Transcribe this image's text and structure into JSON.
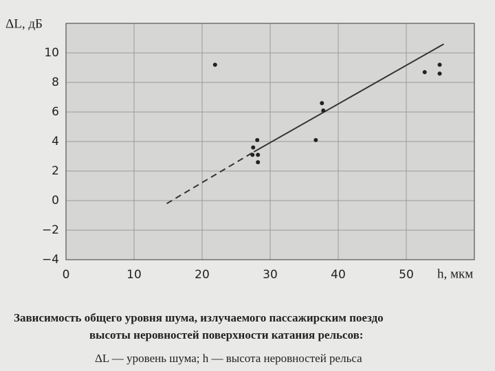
{
  "chart_data": {
    "type": "scatter",
    "y_label": "ΔL, дБ",
    "x_label": "h, мкм",
    "caption": [
      "Зависимость общего уровня шума, излучаемого пассажирским поездо",
      "высоты неровностей поверхности катания рельсов:",
      "ΔL — уровень шума; h — высота неровностей рельса"
    ],
    "xlim": [
      0,
      60
    ],
    "ylim": [
      -4,
      12
    ],
    "xticks": [
      0,
      10,
      20,
      30,
      40,
      50
    ],
    "yticks": [
      {
        "value": -4,
        "label": "−4"
      },
      {
        "value": -2,
        "label": "−2"
      },
      0,
      2,
      4,
      6,
      8,
      10
    ],
    "grid": true,
    "series": [
      {
        "color": "#222222",
        "x": [
          21.9,
          27.5,
          27.4,
          28.1,
          28.2,
          28.2,
          36.7,
          37.6,
          37.8,
          52.7,
          54.9,
          54.9
        ],
        "values": [
          9.2,
          3.6,
          3.1,
          4.1,
          3.1,
          2.6,
          4.1,
          6.6,
          6.1,
          8.7,
          9.2,
          8.6
        ]
      }
    ],
    "fit_lines": [
      {
        "color": "#333333",
        "style": "dashed",
        "x": [
          14.8,
          27.6
        ],
        "values": [
          -0.2,
          3.3
        ]
      },
      {
        "color": "#333333",
        "style": "solid",
        "x": [
          27.6,
          55.5
        ],
        "values": [
          3.3,
          10.6
        ]
      }
    ]
  }
}
